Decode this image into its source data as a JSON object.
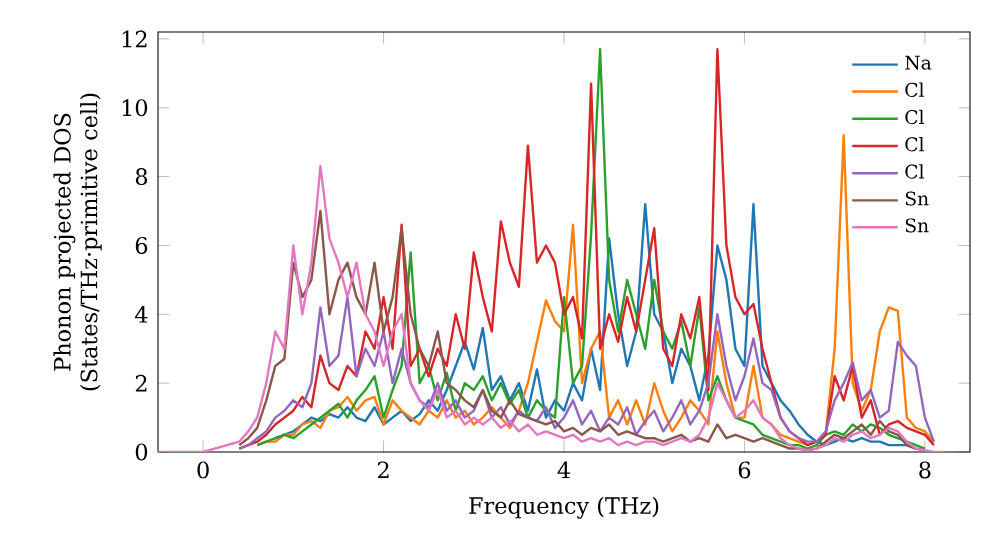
{
  "chart_data": {
    "type": "line",
    "xlabel": "Frequency (THz)",
    "ylabel": "Phonon projected DOS (States/THz·primitive cell)",
    "xlim": [
      -0.5,
      8.5
    ],
    "ylim": [
      0,
      12.2
    ],
    "xticks": [
      0,
      2,
      4,
      6,
      8
    ],
    "yticks": [
      0,
      2,
      4,
      6,
      8,
      10,
      12
    ],
    "legend": "top right",
    "x": [
      -0.5,
      0.0,
      0.4,
      0.5,
      0.6,
      0.7,
      0.8,
      0.9,
      1.0,
      1.1,
      1.2,
      1.3,
      1.4,
      1.5,
      1.6,
      1.7,
      1.8,
      1.9,
      2.0,
      2.1,
      2.2,
      2.3,
      2.4,
      2.5,
      2.6,
      2.7,
      2.8,
      2.9,
      3.0,
      3.1,
      3.2,
      3.3,
      3.4,
      3.5,
      3.6,
      3.7,
      3.8,
      3.9,
      4.0,
      4.1,
      4.2,
      4.3,
      4.4,
      4.5,
      4.6,
      4.7,
      4.8,
      4.9,
      5.0,
      5.1,
      5.2,
      5.3,
      5.4,
      5.5,
      5.6,
      5.7,
      5.8,
      5.9,
      6.0,
      6.1,
      6.2,
      6.3,
      6.4,
      6.5,
      6.6,
      6.7,
      6.8,
      6.9,
      7.0,
      7.1,
      7.2,
      7.3,
      7.4,
      7.5,
      7.6,
      7.7,
      7.8,
      7.9,
      8.0,
      8.1,
      8.2
    ],
    "series": [
      {
        "name": "Na",
        "color": "#1f77b4",
        "values": [
          null,
          null,
          null,
          null,
          null,
          null,
          0.4,
          0.5,
          0.6,
          0.8,
          1.0,
          0.9,
          1.1,
          1.0,
          1.3,
          1.0,
          0.9,
          1.3,
          0.8,
          1.0,
          1.2,
          0.9,
          1.1,
          1.5,
          1.2,
          1.8,
          2.5,
          3.2,
          2.4,
          3.6,
          1.8,
          2.2,
          1.5,
          2.0,
          1.2,
          2.4,
          1.0,
          1.5,
          1.2,
          2.0,
          1.5,
          3.0,
          1.8,
          6.2,
          4.0,
          2.5,
          3.5,
          7.2,
          4.0,
          3.5,
          2.0,
          3.0,
          2.5,
          1.5,
          2.8,
          6.0,
          5.0,
          3.0,
          2.5,
          7.2,
          2.5,
          2.0,
          1.5,
          1.2,
          0.8,
          0.5,
          0.3,
          0.2,
          0.3,
          0.4,
          0.3,
          0.4,
          0.3,
          0.3,
          0.2,
          0.2,
          0.2,
          0.1,
          null,
          null,
          null
        ]
      },
      {
        "name": "Cl",
        "color": "#ff7f0e",
        "values": [
          null,
          null,
          null,
          null,
          0.2,
          0.3,
          0.3,
          0.5,
          0.5,
          0.8,
          0.9,
          0.7,
          1.2,
          1.3,
          1.6,
          1.2,
          1.5,
          1.6,
          0.8,
          1.5,
          1.2,
          1.0,
          0.8,
          1.2,
          1.0,
          1.5,
          1.0,
          1.2,
          0.8,
          1.0,
          1.3,
          1.0,
          0.7,
          1.2,
          2.0,
          3.2,
          4.4,
          3.8,
          3.5,
          6.6,
          2.0,
          3.0,
          3.5,
          1.0,
          1.5,
          0.8,
          1.5,
          0.8,
          2.0,
          1.2,
          0.6,
          1.0,
          1.5,
          1.2,
          0.8,
          3.5,
          2.0,
          1.0,
          1.0,
          2.5,
          1.0,
          0.8,
          0.5,
          0.4,
          0.3,
          0.2,
          0.3,
          0.5,
          3.0,
          9.2,
          2.0,
          1.2,
          1.8,
          3.5,
          4.2,
          4.1,
          1.0,
          0.7,
          0.6,
          0.3,
          null
        ]
      },
      {
        "name": "Cl",
        "color": "#2ca02c",
        "values": [
          null,
          null,
          null,
          null,
          0.2,
          0.3,
          0.4,
          0.5,
          0.4,
          0.6,
          0.8,
          1.0,
          1.2,
          1.4,
          1.0,
          1.5,
          1.8,
          2.2,
          1.0,
          1.8,
          2.5,
          5.8,
          2.0,
          2.5,
          1.5,
          2.3,
          1.2,
          2.0,
          1.8,
          2.2,
          1.5,
          2.0,
          1.4,
          1.8,
          1.0,
          1.5,
          1.2,
          1.0,
          4.5,
          2.0,
          2.5,
          6.3,
          11.7,
          5.0,
          3.5,
          5.0,
          4.0,
          3.0,
          5.0,
          3.5,
          3.0,
          3.8,
          2.5,
          4.2,
          1.5,
          2.2,
          1.5,
          1.0,
          0.9,
          0.8,
          0.5,
          0.4,
          0.3,
          0.2,
          0.2,
          0.1,
          0.2,
          0.5,
          0.6,
          0.5,
          0.8,
          0.6,
          0.8,
          0.7,
          0.5,
          0.4,
          0.3,
          0.2,
          0.1,
          null,
          null
        ]
      },
      {
        "name": "Cl",
        "color": "#d62728",
        "values": [
          null,
          null,
          0.1,
          0.2,
          0.3,
          0.5,
          0.8,
          1.0,
          1.2,
          1.6,
          1.3,
          2.8,
          2.0,
          1.8,
          2.5,
          2.2,
          3.5,
          3.0,
          4.5,
          3.0,
          6.6,
          2.5,
          3.0,
          2.2,
          3.0,
          2.5,
          4.0,
          3.0,
          5.8,
          4.5,
          3.5,
          6.7,
          5.5,
          4.8,
          8.9,
          5.5,
          6.0,
          5.5,
          4.0,
          4.5,
          3.3,
          10.7,
          3.0,
          4.0,
          3.2,
          4.5,
          3.5,
          5.0,
          6.5,
          3.0,
          2.5,
          4.0,
          3.3,
          4.5,
          1.8,
          11.7,
          6.0,
          4.5,
          4.0,
          4.3,
          3.0,
          2.0,
          1.0,
          0.6,
          0.4,
          0.2,
          0.3,
          0.5,
          2.2,
          1.5,
          2.5,
          1.0,
          1.5,
          0.5,
          0.8,
          0.9,
          0.7,
          0.6,
          0.5,
          0.2,
          null
        ]
      },
      {
        "name": "Cl",
        "color": "#9467bd",
        "values": [
          null,
          null,
          0.1,
          0.2,
          0.4,
          0.6,
          1.0,
          1.2,
          1.5,
          1.3,
          2.0,
          4.2,
          2.5,
          2.8,
          4.5,
          2.2,
          3.0,
          2.5,
          3.5,
          2.0,
          3.0,
          2.0,
          1.5,
          1.3,
          2.0,
          1.2,
          1.5,
          1.0,
          1.2,
          1.8,
          1.0,
          1.3,
          0.8,
          1.2,
          1.0,
          0.9,
          1.3,
          0.7,
          1.0,
          1.5,
          0.8,
          1.2,
          0.6,
          1.0,
          0.8,
          1.3,
          0.5,
          0.9,
          1.2,
          0.6,
          1.0,
          1.5,
          0.8,
          1.2,
          2.0,
          4.0,
          2.5,
          1.5,
          2.2,
          3.3,
          2.0,
          1.8,
          1.0,
          0.6,
          0.4,
          0.3,
          0.3,
          0.6,
          1.5,
          2.0,
          2.6,
          1.5,
          1.8,
          1.0,
          1.2,
          3.2,
          2.8,
          2.5,
          1.0,
          0.3,
          null
        ]
      },
      {
        "name": "Sn",
        "color": "#8c564b",
        "values": [
          null,
          null,
          0.2,
          0.4,
          0.7,
          1.5,
          2.5,
          2.7,
          5.5,
          4.5,
          5.0,
          7.0,
          4.0,
          5.0,
          5.5,
          4.5,
          4.0,
          5.5,
          3.5,
          4.5,
          6.5,
          4.0,
          3.0,
          2.5,
          3.5,
          2.0,
          1.8,
          1.5,
          1.3,
          1.8,
          1.2,
          1.0,
          1.5,
          1.1,
          1.0,
          0.9,
          0.8,
          0.9,
          0.6,
          0.7,
          0.5,
          0.7,
          0.6,
          0.8,
          0.5,
          0.6,
          0.5,
          0.4,
          0.4,
          0.3,
          0.4,
          0.5,
          0.3,
          0.4,
          0.3,
          0.8,
          0.4,
          0.5,
          0.4,
          0.3,
          0.4,
          0.3,
          0.2,
          0.1,
          0.1,
          0.05,
          0.1,
          0.3,
          0.5,
          0.4,
          0.6,
          0.8,
          0.5,
          0.9,
          0.6,
          0.5,
          0.2,
          0.1,
          0.05,
          null,
          null
        ]
      },
      {
        "name": "Sn",
        "color": "#e377c2",
        "values": [
          0,
          0,
          0.3,
          0.6,
          1.0,
          2.0,
          3.5,
          3.0,
          6.0,
          4.0,
          5.5,
          8.3,
          6.2,
          5.5,
          4.5,
          5.5,
          4.0,
          3.5,
          2.5,
          3.5,
          4.0,
          2.0,
          1.5,
          1.2,
          1.8,
          1.0,
          1.2,
          0.8,
          1.0,
          0.8,
          1.0,
          0.7,
          0.9,
          0.6,
          0.8,
          0.5,
          0.6,
          0.5,
          0.4,
          0.5,
          0.3,
          0.4,
          0.3,
          0.4,
          0.2,
          0.3,
          0.2,
          0.3,
          0.3,
          0.2,
          0.3,
          0.4,
          0.3,
          0.5,
          1.0,
          2.0,
          1.5,
          1.0,
          1.2,
          1.5,
          1.0,
          0.8,
          0.4,
          0.2,
          0.1,
          0.05,
          0.1,
          0.2,
          0.4,
          0.3,
          0.5,
          0.6,
          0.4,
          0.5,
          0.7,
          0.6,
          0.3,
          0.1,
          0.05,
          0,
          0
        ]
      }
    ]
  }
}
